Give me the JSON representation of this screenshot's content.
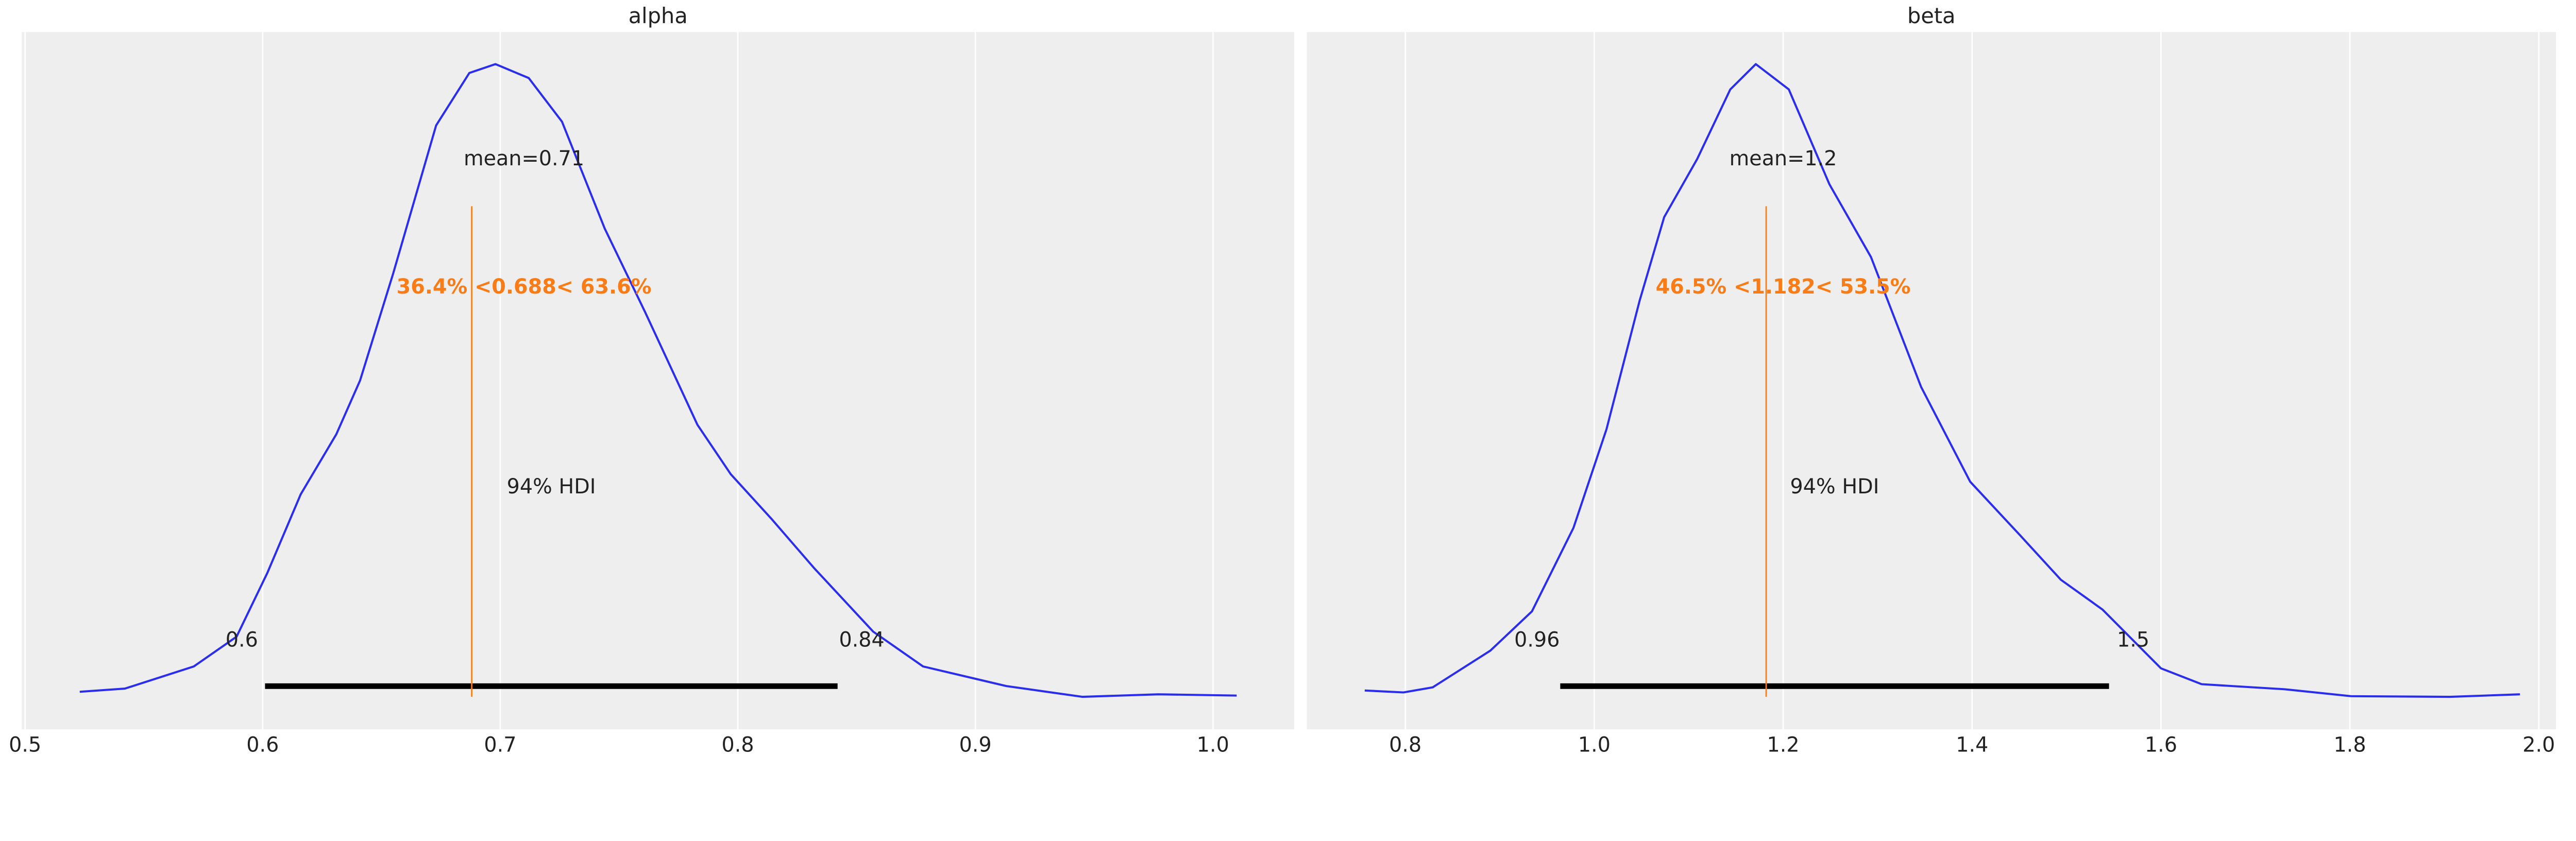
{
  "chart_data": [
    {
      "type": "line",
      "title": "alpha",
      "xlim": [
        0.5,
        1.0
      ],
      "xticks": [
        "0.5",
        "0.6",
        "0.7",
        "0.8",
        "0.9",
        "1.0"
      ],
      "grid": true,
      "background_color": "#eeeeee",
      "curve_color": "#2a2eec",
      "ref_color": "#fa7c17",
      "density": {
        "x": [
          0.523,
          0.542,
          0.571,
          0.589,
          0.602,
          0.616,
          0.631,
          0.641,
          0.655,
          0.673,
          0.687,
          0.698,
          0.712,
          0.726,
          0.744,
          0.761,
          0.783,
          0.797,
          0.814,
          0.832,
          0.857,
          0.878,
          0.913,
          0.945,
          0.977,
          1.01
        ],
        "y": [
          0.008,
          0.013,
          0.048,
          0.095,
          0.196,
          0.32,
          0.415,
          0.5,
          0.67,
          0.903,
          0.986,
          1.0,
          0.978,
          0.909,
          0.74,
          0.608,
          0.43,
          0.352,
          0.282,
          0.204,
          0.103,
          0.048,
          0.017,
          0.0,
          0.004,
          0.002
        ]
      },
      "mean_label": "mean=0.71",
      "mean": 0.71,
      "ref_value": 0.688,
      "ref_label": "36.4% <0.688< 63.6%",
      "hdi_label": "94% HDI",
      "hdi": [
        0.601,
        0.842
      ],
      "hdi_low_label": "0.6",
      "hdi_high_label": "0.84"
    },
    {
      "type": "line",
      "title": "beta",
      "xlim": [
        0.8,
        2.0
      ],
      "xticks": [
        "0.8",
        "1.0",
        "1.2",
        "1.4",
        "1.6",
        "1.8",
        "2.0"
      ],
      "grid": true,
      "background_color": "#eeeeee",
      "curve_color": "#2a2eec",
      "ref_color": "#fa7c17",
      "density": {
        "x": [
          0.757,
          0.798,
          0.829,
          0.89,
          0.934,
          0.978,
          1.013,
          1.048,
          1.074,
          1.109,
          1.144,
          1.171,
          1.206,
          1.249,
          1.293,
          1.346,
          1.398,
          1.451,
          1.494,
          1.538,
          1.6,
          1.643,
          1.731,
          1.801,
          1.906,
          1.98
        ],
        "y": [
          0.01,
          0.007,
          0.015,
          0.073,
          0.135,
          0.267,
          0.423,
          0.626,
          0.758,
          0.85,
          0.96,
          1.0,
          0.96,
          0.81,
          0.695,
          0.49,
          0.34,
          0.255,
          0.185,
          0.138,
          0.045,
          0.02,
          0.012,
          0.001,
          0.0,
          0.004
        ]
      },
      "mean_label": "mean=1.2",
      "mean": 1.2,
      "ref_value": 1.182,
      "ref_label": "46.5% <1.182< 53.5%",
      "hdi_label": "94% HDI",
      "hdi": [
        0.964,
        1.545
      ],
      "hdi_low_label": "0.96",
      "hdi_high_label": "1.5"
    }
  ]
}
